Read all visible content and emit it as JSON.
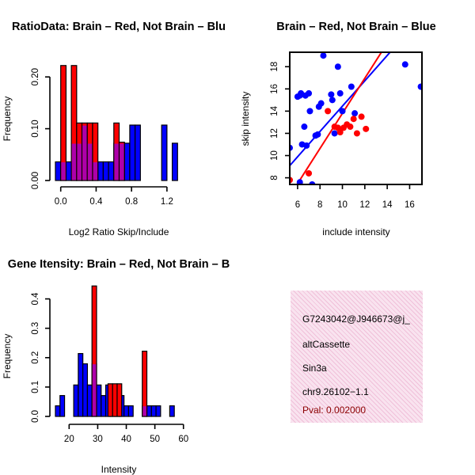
{
  "colors": {
    "red": "#ff0000",
    "blue": "#0000ff",
    "purple": "#a000c8",
    "text": "#000000",
    "pval": "#8b0000"
  },
  "chart_data": [
    {
      "id": "ratio-hist",
      "type": "histogram",
      "title": "RatioData: Brain – Red, Not Brain – Blu",
      "xlabel": "Log2 Ratio Skip/Include",
      "ylabel": "Frequency",
      "xticks": [
        0.0,
        0.4,
        0.8,
        1.2
      ],
      "xtick_labels": [
        "0.0",
        "0.4",
        "0.8",
        "1.2"
      ],
      "yticks": [
        0.0,
        0.1,
        0.2
      ],
      "ytick_labels": [
        "0.00",
        "0.10",
        "0.20"
      ],
      "xlim": [
        -0.06,
        1.38
      ],
      "ylim": [
        0,
        0.24
      ],
      "bin_width": 0.06,
      "series": [
        {
          "name": "Not Brain",
          "color": "blue",
          "bins": [
            {
              "x": -0.06,
              "v": 0.036
            },
            {
              "x": 0.0,
              "v": 0.036
            },
            {
              "x": 0.06,
              "v": 0.036
            },
            {
              "x": 0.12,
              "v": 0.072
            },
            {
              "x": 0.18,
              "v": 0.072
            },
            {
              "x": 0.24,
              "v": 0.107
            },
            {
              "x": 0.3,
              "v": 0.072
            },
            {
              "x": 0.36,
              "v": 0.036
            },
            {
              "x": 0.42,
              "v": 0.036
            },
            {
              "x": 0.48,
              "v": 0.036
            },
            {
              "x": 0.54,
              "v": 0.036
            },
            {
              "x": 0.6,
              "v": 0.072
            },
            {
              "x": 0.66,
              "v": 0.072
            },
            {
              "x": 0.72,
              "v": 0.072
            },
            {
              "x": 0.78,
              "v": 0.107
            },
            {
              "x": 0.84,
              "v": 0.107
            },
            {
              "x": 1.14,
              "v": 0.107
            },
            {
              "x": 1.26,
              "v": 0.072
            }
          ]
        },
        {
          "name": "Brain",
          "color": "red",
          "bins": [
            {
              "x": 0.0,
              "v": 0.222
            },
            {
              "x": 0.12,
              "v": 0.222
            },
            {
              "x": 0.18,
              "v": 0.111
            },
            {
              "x": 0.24,
              "v": 0.111
            },
            {
              "x": 0.3,
              "v": 0.111
            },
            {
              "x": 0.36,
              "v": 0.111
            },
            {
              "x": 0.6,
              "v": 0.111
            },
            {
              "x": 0.66,
              "v": 0.074
            }
          ]
        }
      ]
    },
    {
      "id": "scatter",
      "type": "scatter",
      "title": "Brain – Red, Not Brain – Blue",
      "xlabel": "include intensity",
      "ylabel": "skip intensity",
      "xticks": [
        6,
        8,
        10,
        12,
        14,
        16
      ],
      "xtick_labels": [
        "6",
        "8",
        "10",
        "12",
        "14",
        "16"
      ],
      "yticks": [
        8,
        10,
        12,
        14,
        16,
        18
      ],
      "ytick_labels": [
        "8",
        "10",
        "12",
        "14",
        "16",
        "18"
      ],
      "xlim": [
        5.3,
        17.1
      ],
      "ylim": [
        7.4,
        19.3
      ],
      "series": [
        {
          "name": "Not Brain",
          "color": "blue",
          "points": [
            [
              5.3,
              10.7
            ],
            [
              6.0,
              15.3
            ],
            [
              6.2,
              15.4
            ],
            [
              6.3,
              15.6
            ],
            [
              6.4,
              11.0
            ],
            [
              6.6,
              12.6
            ],
            [
              6.7,
              15.4
            ],
            [
              6.8,
              10.9
            ],
            [
              7.0,
              15.6
            ],
            [
              7.1,
              14.0
            ],
            [
              7.3,
              7.4
            ],
            [
              7.6,
              11.8
            ],
            [
              7.8,
              11.9
            ],
            [
              7.9,
              14.4
            ],
            [
              8.1,
              14.7
            ],
            [
              8.3,
              19.0
            ],
            [
              9.0,
              15.5
            ],
            [
              9.1,
              15.0
            ],
            [
              9.3,
              12.0
            ],
            [
              9.6,
              18.0
            ],
            [
              9.8,
              15.6
            ],
            [
              10.0,
              14.0
            ],
            [
              10.8,
              16.2
            ],
            [
              11.1,
              13.8
            ],
            [
              15.6,
              18.2
            ],
            [
              17.0,
              16.2
            ],
            [
              6.2,
              7.6
            ]
          ]
        },
        {
          "name": "Brain",
          "color": "red",
          "points": [
            [
              5.3,
              7.8
            ],
            [
              7.0,
              8.4
            ],
            [
              8.7,
              14.0
            ],
            [
              9.3,
              12.6
            ],
            [
              9.6,
              12.5
            ],
            [
              9.8,
              12.1
            ],
            [
              10.1,
              12.5
            ],
            [
              10.4,
              12.8
            ],
            [
              10.7,
              12.6
            ],
            [
              11.0,
              13.3
            ],
            [
              11.3,
              12.0
            ],
            [
              11.7,
              13.5
            ],
            [
              12.1,
              12.4
            ]
          ]
        }
      ],
      "fit_lines": [
        {
          "name": "Not Brain",
          "color": "blue",
          "intercept": 3.05,
          "slope": 1.14
        },
        {
          "name": "Brain",
          "color": "red",
          "intercept": -2.0,
          "slope": 1.58
        }
      ]
    },
    {
      "id": "intensity-hist",
      "type": "histogram",
      "title": "Gene Itensity: Brain – Red, Not Brain – B",
      "xlabel": "Intensity",
      "ylabel": "Frequency",
      "xticks": [
        20,
        30,
        40,
        50,
        60
      ],
      "xtick_labels": [
        "20",
        "30",
        "40",
        "50",
        "60"
      ],
      "yticks": [
        0.0,
        0.1,
        0.2,
        0.3,
        0.4
      ],
      "ytick_labels": [
        "0.0",
        "0.1",
        "0.2",
        "0.3",
        "0.4"
      ],
      "xlim": [
        15.2,
        59.8
      ],
      "ylim": [
        0,
        0.45
      ],
      "bin_width": 1.6,
      "series": [
        {
          "name": "Not Brain",
          "color": "blue",
          "bins": [
            {
              "x": 15.2,
              "v": 0.036
            },
            {
              "x": 16.8,
              "v": 0.071
            },
            {
              "x": 21.6,
              "v": 0.107
            },
            {
              "x": 23.2,
              "v": 0.214
            },
            {
              "x": 24.8,
              "v": 0.179
            },
            {
              "x": 26.4,
              "v": 0.107
            },
            {
              "x": 28.0,
              "v": 0.179
            },
            {
              "x": 29.6,
              "v": 0.107
            },
            {
              "x": 31.2,
              "v": 0.071
            },
            {
              "x": 32.8,
              "v": 0.107
            },
            {
              "x": 34.4,
              "v": 0.071
            },
            {
              "x": 36.0,
              "v": 0.071
            },
            {
              "x": 37.6,
              "v": 0.071
            },
            {
              "x": 39.2,
              "v": 0.036
            },
            {
              "x": 40.8,
              "v": 0.036
            },
            {
              "x": 45.6,
              "v": 0.036
            },
            {
              "x": 47.2,
              "v": 0.036
            },
            {
              "x": 48.8,
              "v": 0.036
            },
            {
              "x": 50.4,
              "v": 0.036
            },
            {
              "x": 55.2,
              "v": 0.036
            }
          ]
        },
        {
          "name": "Brain",
          "color": "red",
          "bins": [
            {
              "x": 28.0,
              "v": 0.444
            },
            {
              "x": 33.6,
              "v": 0.111
            },
            {
              "x": 35.2,
              "v": 0.111
            },
            {
              "x": 36.8,
              "v": 0.111
            },
            {
              "x": 45.6,
              "v": 0.222
            }
          ]
        }
      ]
    }
  ],
  "info": {
    "id": "G7243042@J946673@j_",
    "event": "altCassette",
    "gene": "Sin3a",
    "locus": "chr9.26102−1.1",
    "pval": "Pval: 0.002000"
  }
}
